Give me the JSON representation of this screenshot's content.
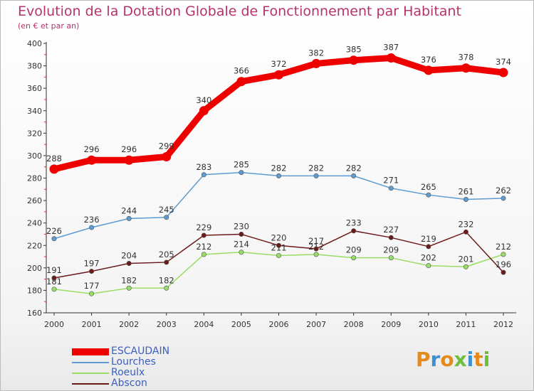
{
  "title": "Evolution de la Dotation Globale de Fonctionnement par Habitant",
  "subtitle": "(en € et par an)",
  "logo": {
    "text": "Proxiti",
    "letters": [
      "P",
      "r",
      "o",
      "x",
      "i",
      "t",
      "i"
    ],
    "colors": [
      "#e58a1f",
      "#3f8fd2",
      "#e58a1f",
      "#6cbf3a",
      "#3f8fd2",
      "#e58a1f",
      "#6cbf3a"
    ]
  },
  "chart_data": {
    "type": "line",
    "title": "Evolution de la Dotation Globale de Fonctionnement par Habitant",
    "subtitle": "(en € et par an)",
    "categories": [
      "2000",
      "2001",
      "2002",
      "2003",
      "2004",
      "2005",
      "2006",
      "2007",
      "2008",
      "2009",
      "2010",
      "2011",
      "2012"
    ],
    "ylim": [
      160,
      400
    ],
    "yticks": [
      160,
      180,
      200,
      220,
      240,
      260,
      280,
      300,
      320,
      340,
      360,
      380,
      400
    ],
    "grid": false,
    "legend_position": "bottom-left",
    "series": [
      {
        "name": "ESCAUDAIN",
        "color": "#ee0000",
        "width": 9,
        "values": [
          288,
          296,
          296,
          299,
          340,
          366,
          372,
          382,
          385,
          387,
          376,
          378,
          374
        ]
      },
      {
        "name": "Lourches",
        "color": "#5d9bd0",
        "width": 1.5,
        "values": [
          226,
          236,
          244,
          245,
          283,
          285,
          282,
          282,
          282,
          271,
          265,
          261,
          262
        ]
      },
      {
        "name": "Roeulx",
        "color": "#99dd66",
        "width": 1.5,
        "values": [
          181,
          177,
          182,
          182,
          212,
          214,
          211,
          212,
          209,
          209,
          202,
          201,
          212
        ]
      },
      {
        "name": "Abscon",
        "color": "#6b1a1a",
        "width": 1.5,
        "values": [
          191,
          197,
          204,
          205,
          229,
          230,
          220,
          217,
          233,
          227,
          219,
          232,
          196
        ]
      }
    ]
  }
}
